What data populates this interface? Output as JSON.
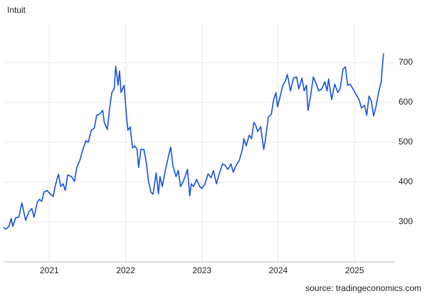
{
  "chart_data": {
    "type": "line",
    "title": "Intuit",
    "source": "source: tradingeconomics.com",
    "color": "#1550e0",
    "grid": true,
    "xlim": [
      2020.4,
      2025.53
    ],
    "xticks": [
      2021,
      2022,
      2023,
      2024,
      2025
    ],
    "ylim": [
      200,
      800
    ],
    "yticks": [
      300,
      400,
      500,
      600,
      700
    ],
    "x": [
      2020.4,
      2020.43,
      2020.47,
      2020.5,
      2020.52,
      2020.56,
      2020.6,
      2020.64,
      2020.66,
      2020.69,
      2020.73,
      2020.77,
      2020.8,
      2020.84,
      2020.87,
      2020.9,
      2020.93,
      2020.97,
      2021.01,
      2021.05,
      2021.08,
      2021.12,
      2021.15,
      2021.18,
      2021.21,
      2021.24,
      2021.29,
      2021.33,
      2021.36,
      2021.4,
      2021.44,
      2021.48,
      2021.51,
      2021.55,
      2021.59,
      2021.62,
      2021.66,
      2021.7,
      2021.72,
      2021.76,
      2021.79,
      2021.82,
      2021.85,
      2021.87,
      2021.89,
      2021.9,
      2021.92,
      2021.94,
      2021.98,
      2022.01,
      2022.03,
      2022.06,
      2022.09,
      2022.12,
      2022.15,
      2022.17,
      2022.2,
      2022.24,
      2022.27,
      2022.3,
      2022.33,
      2022.36,
      2022.4,
      2022.43,
      2022.45,
      2022.48,
      2022.52,
      2022.56,
      2022.59,
      2022.62,
      2022.66,
      2022.69,
      2022.72,
      2022.74,
      2022.78,
      2022.81,
      2022.84,
      2022.86,
      2022.89,
      2022.93,
      2022.97,
      2023.0,
      2023.04,
      2023.08,
      2023.12,
      2023.15,
      2023.19,
      2023.23,
      2023.27,
      2023.3,
      2023.34,
      2023.38,
      2023.41,
      2023.45,
      2023.49,
      2023.53,
      2023.55,
      2023.58,
      2023.62,
      2023.65,
      2023.68,
      2023.7,
      2023.73,
      2023.77,
      2023.81,
      2023.83,
      2023.87,
      2023.91,
      2023.94,
      2023.97,
      2023.99,
      2024.02,
      2024.06,
      2024.09,
      2024.12,
      2024.16,
      2024.2,
      2024.24,
      2024.27,
      2024.31,
      2024.34,
      2024.37,
      2024.39,
      2024.42,
      2024.46,
      2024.5,
      2024.53,
      2024.57,
      2024.61,
      2024.64,
      2024.66,
      2024.7,
      2024.74,
      2024.78,
      2024.81,
      2024.85,
      2024.88,
      2024.91,
      2024.94,
      2024.98,
      2025.02,
      2025.06,
      2025.09,
      2025.13,
      2025.16,
      2025.19,
      2025.22,
      2025.25,
      2025.28,
      2025.32,
      2025.35,
      2025.36,
      2025.38
    ],
    "values": [
      286,
      282,
      289,
      309,
      289,
      311,
      312,
      348,
      330,
      304,
      325,
      334,
      312,
      348,
      357,
      352,
      375,
      379,
      371,
      364,
      393,
      420,
      389,
      396,
      379,
      418,
      414,
      402,
      437,
      455,
      482,
      504,
      500,
      530,
      536,
      568,
      571,
      580,
      550,
      532,
      586,
      625,
      634,
      691,
      661,
      643,
      679,
      625,
      643,
      568,
      530,
      539,
      486,
      491,
      482,
      437,
      482,
      482,
      450,
      402,
      375,
      370,
      423,
      371,
      414,
      389,
      429,
      464,
      488,
      441,
      414,
      429,
      389,
      396,
      414,
      432,
      366,
      396,
      389,
      407,
      389,
      384,
      396,
      421,
      411,
      429,
      396,
      423,
      446,
      443,
      432,
      446,
      425,
      443,
      455,
      482,
      509,
      491,
      518,
      509,
      550,
      545,
      527,
      539,
      482,
      504,
      563,
      571,
      607,
      625,
      589,
      611,
      643,
      652,
      670,
      629,
      661,
      664,
      634,
      661,
      629,
      643,
      580,
      611,
      664,
      646,
      629,
      634,
      652,
      629,
      659,
      607,
      646,
      625,
      634,
      684,
      689,
      643,
      646,
      634,
      620,
      607,
      586,
      593,
      568,
      616,
      604,
      566,
      589,
      629,
      652,
      679,
      723
    ]
  }
}
